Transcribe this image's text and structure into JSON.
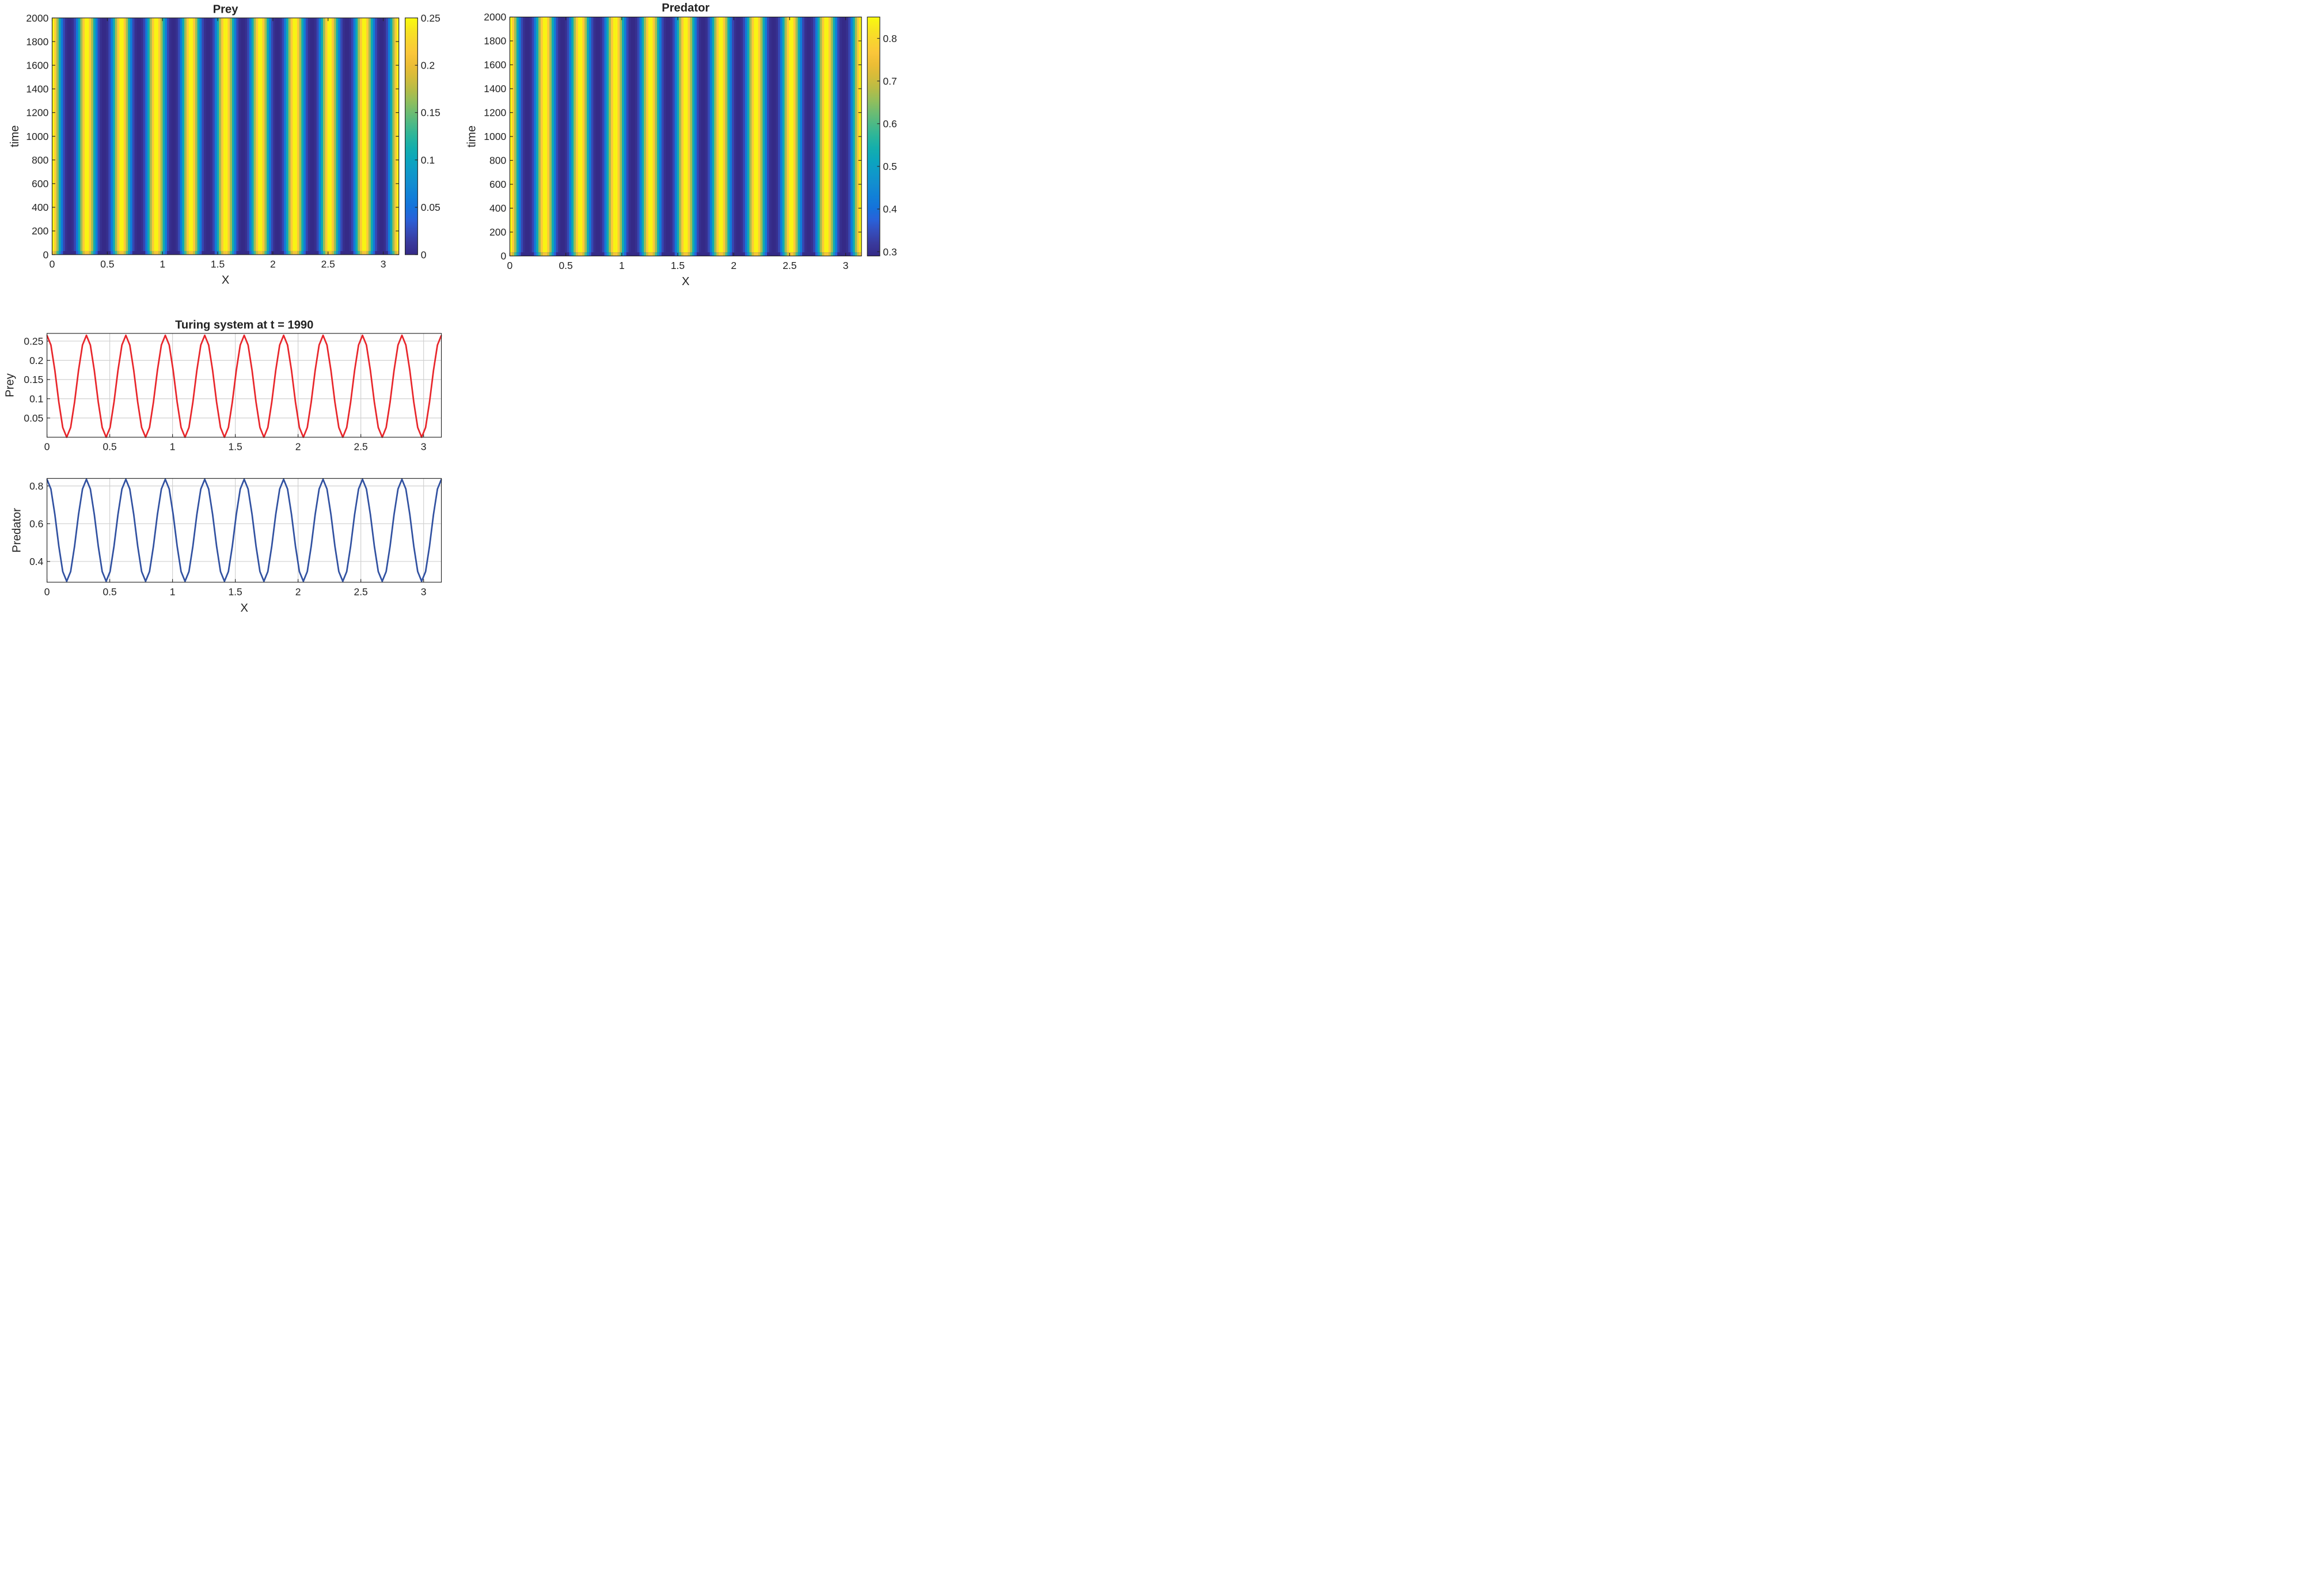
{
  "chart_data": [
    {
      "type": "heatmap",
      "title": "Prey",
      "xlabel": "X",
      "ylabel": "time",
      "xlim": [
        0,
        3.1416
      ],
      "ylim": [
        0,
        2000
      ],
      "xticks": [
        0,
        0.5,
        1,
        1.5,
        2,
        2.5,
        3
      ],
      "yticks": [
        0,
        200,
        400,
        600,
        800,
        1000,
        1200,
        1400,
        1600,
        1800,
        2000
      ],
      "colorbar": {
        "range": [
          0,
          0.25
        ],
        "ticks": [
          0,
          0.05,
          0.1,
          0.15,
          0.2,
          0.25
        ]
      },
      "colormap": "parula",
      "pattern": {
        "stripes": 10,
        "peak_positions_x": [
          0,
          0.31,
          0.63,
          0.94,
          1.26,
          1.57,
          1.88,
          2.2,
          2.51,
          2.83,
          3.14
        ],
        "value_min": 0,
        "value_max": 0.25,
        "constant_over_time_after": 30
      }
    },
    {
      "type": "heatmap",
      "title": "Predator",
      "xlabel": "X",
      "ylabel": "time",
      "xlim": [
        0,
        3.1416
      ],
      "ylim": [
        0,
        2000
      ],
      "xticks": [
        0,
        0.5,
        1,
        1.5,
        2,
        2.5,
        3
      ],
      "yticks": [
        0,
        200,
        400,
        600,
        800,
        1000,
        1200,
        1400,
        1600,
        1800,
        2000
      ],
      "colorbar": {
        "range": [
          0.29,
          0.85
        ],
        "ticks": [
          0.3,
          0.4,
          0.5,
          0.6,
          0.7,
          0.8
        ]
      },
      "colormap": "parula",
      "pattern": {
        "stripes": 10,
        "peak_positions_x": [
          0,
          0.31,
          0.63,
          0.94,
          1.26,
          1.57,
          1.88,
          2.2,
          2.51,
          2.83,
          3.14
        ],
        "value_min": 0.29,
        "value_max": 0.84,
        "constant_over_time_after": 30
      }
    },
    {
      "type": "line",
      "title": "Turing system at t = 1990",
      "xlabel": "",
      "ylabel": "Prey",
      "xlim": [
        0,
        3.1416
      ],
      "ylim": [
        0,
        0.27
      ],
      "xticks": [
        0,
        0.5,
        1,
        1.5,
        2,
        2.5,
        3
      ],
      "yticks": [
        0.05,
        0.1,
        0.15,
        0.2,
        0.25
      ],
      "grid": true,
      "series": [
        {
          "color": "#e8262b",
          "wavenumber": 20,
          "min": 0.0,
          "max": 0.265,
          "peak_at_x0": true,
          "samples": 101
        }
      ]
    },
    {
      "type": "line",
      "title": "",
      "xlabel": "X",
      "ylabel": "Predator",
      "xlim": [
        0,
        3.1416
      ],
      "ylim": [
        0.29,
        0.84
      ],
      "xticks": [
        0,
        0.5,
        1,
        1.5,
        2,
        2.5,
        3
      ],
      "yticks": [
        0.4,
        0.6,
        0.8
      ],
      "grid": true,
      "series": [
        {
          "color": "#3151a1",
          "wavenumber": 20,
          "min": 0.295,
          "max": 0.835,
          "peak_at_x0": true,
          "samples": 101
        }
      ]
    }
  ]
}
